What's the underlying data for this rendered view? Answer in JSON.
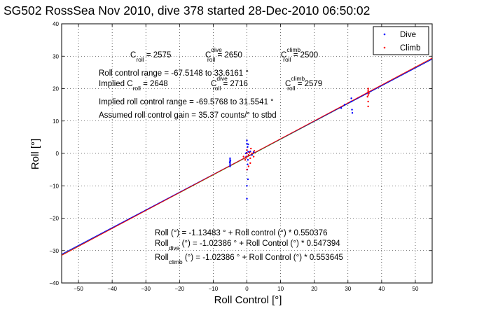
{
  "chart_data": {
    "type": "scatter",
    "title": "SG502 RossSea Nov 2010, dive 378 started 28-Dec-2010 06:50:02",
    "xlabel": "Roll Control [°]",
    "ylabel": "Roll [°]",
    "xlim": [
      -55,
      55
    ],
    "ylim": [
      -40,
      40
    ],
    "xticks": [
      -50,
      -40,
      -30,
      -20,
      -10,
      0,
      10,
      20,
      30,
      40,
      50
    ],
    "yticks": [
      -40,
      -30,
      -20,
      -10,
      0,
      10,
      20,
      30,
      40
    ],
    "grid": true,
    "legend_position": "top-right",
    "series": [
      {
        "name": "Dive",
        "color": "#0000ff",
        "marker": "dot",
        "points": [
          [
            -5,
            -4
          ],
          [
            -5,
            -3
          ],
          [
            -5,
            -2.5
          ],
          [
            -5,
            -2
          ],
          [
            -5,
            -1.5
          ],
          [
            -5,
            -3.5
          ],
          [
            -5.1,
            -2.8
          ],
          [
            -4.9,
            -2.2
          ],
          [
            -0.3,
            0
          ],
          [
            -0.2,
            -1
          ],
          [
            0,
            1
          ],
          [
            0.2,
            2
          ],
          [
            0.3,
            -2
          ],
          [
            0,
            4
          ],
          [
            0,
            3
          ],
          [
            0.1,
            -5
          ],
          [
            0.4,
            0.5
          ],
          [
            -0.1,
            0.2
          ],
          [
            0.5,
            -0.5
          ],
          [
            0,
            -10
          ],
          [
            0,
            -14
          ],
          [
            0.3,
            -8
          ],
          [
            0.4,
            2.8
          ],
          [
            0.2,
            -3.4
          ],
          [
            1.0,
            0.6
          ],
          [
            1.5,
            -0.5
          ],
          [
            2.0,
            0.4
          ],
          [
            31,
            16
          ],
          [
            31,
            17
          ],
          [
            31.2,
            13.5
          ],
          [
            31.3,
            12.5
          ],
          [
            28,
            14
          ],
          [
            29,
            15
          ]
        ]
      },
      {
        "name": "Climb",
        "color": "#ff0000",
        "marker": "dot",
        "points": [
          [
            -1,
            -1
          ],
          [
            -0.5,
            -2
          ],
          [
            0,
            -1
          ],
          [
            0,
            0
          ],
          [
            0,
            1
          ],
          [
            0.5,
            -0.5
          ],
          [
            1,
            -1.5
          ],
          [
            1.5,
            0
          ],
          [
            2,
            -1
          ],
          [
            1,
            -3
          ],
          [
            0.5,
            -4
          ],
          [
            0,
            -5
          ],
          [
            1.2,
            1.5
          ],
          [
            2.2,
            0.8
          ],
          [
            -0.4,
            -1.4
          ],
          [
            0.8,
            0.3
          ],
          [
            36,
            18
          ],
          [
            36,
            19
          ],
          [
            36,
            20
          ],
          [
            35.8,
            17.5
          ],
          [
            36.2,
            18.5
          ],
          [
            36,
            16
          ],
          [
            36,
            14.5
          ],
          [
            36,
            19.5
          ]
        ]
      }
    ],
    "fit_lines": [
      {
        "intercept": -1.13483,
        "slope": 0.550376,
        "color": "#00aa00"
      },
      {
        "intercept": -1.02386,
        "slope": 0.547394,
        "color": "#0000ff"
      },
      {
        "intercept": -1.02386,
        "slope": 0.553645,
        "color": "#ff0000"
      }
    ]
  },
  "annotations": {
    "c_roll": "C",
    "c_roll_sub": "roll",
    "c_roll_val": " = 2575",
    "c_dive": "C",
    "c_dive_sup": "dive",
    "c_dive_sub": "roll",
    "c_dive_val": " = 2650",
    "c_climb": "C",
    "c_climb_sup": "climb",
    "c_climb_sub": "roll",
    "c_climb_val": " = 2500",
    "range_line": "Roll control range = -67.5148 to 33.6161 °",
    "implied_pre": "Implied C",
    "implied_sub": "roll",
    "implied_val": " = 2648",
    "implied_dive": "C",
    "implied_dive_sup": "dive",
    "implied_dive_sub": "roll",
    "implied_dive_val": " = 2716",
    "implied_climb": "C",
    "implied_climb_sup": "climb",
    "implied_climb_sub": "roll",
    "implied_climb_val": " = 2579",
    "implied_range": "Implied roll control range = -69.5768 to 31.5541 °",
    "gain": "Assumed roll control gain = 35.37 counts/° to stbd",
    "eq1": "Roll (°) = -1.13483 ° + Roll control (°) * 0.550376",
    "eq2_pre": "Roll",
    "eq2_sub": "dive",
    "eq2_rest": " (°) = -1.02386 ° + Roll Control (°) * 0.547394",
    "eq3_pre": "Roll",
    "eq3_sub": "climb",
    "eq3_rest": " (°) = -1.02386 ° + Roll Control (°) * 0.553645"
  }
}
